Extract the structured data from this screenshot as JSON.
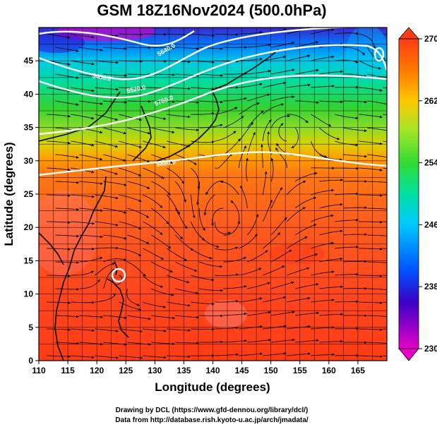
{
  "title": "GSM 18Z16Nov2024 (500.0hPa)",
  "axes": {
    "xlabel": "Longitude (degrees)",
    "ylabel": "Latitude  (degrees)",
    "x_ticks": [
      110,
      115,
      120,
      125,
      130,
      135,
      140,
      145,
      150,
      155,
      160,
      165
    ],
    "y_ticks": [
      0,
      5,
      10,
      15,
      20,
      25,
      30,
      35,
      40,
      45
    ],
    "x_range": [
      110,
      170
    ],
    "y_range": [
      0,
      50
    ]
  },
  "colorbar": {
    "ticks": [
      230,
      238,
      246,
      254,
      262,
      270
    ],
    "range": [
      230,
      270
    ],
    "stops": [
      {
        "value": 230,
        "color": "#e600c8"
      },
      {
        "value": 236,
        "color": "#3c00c8"
      },
      {
        "value": 240,
        "color": "#0050ff"
      },
      {
        "value": 246,
        "color": "#00c8ff"
      },
      {
        "value": 250,
        "color": "#00e0a0"
      },
      {
        "value": 254,
        "color": "#32dc32"
      },
      {
        "value": 258,
        "color": "#a0e628"
      },
      {
        "value": 262,
        "color": "#ffc800"
      },
      {
        "value": 266,
        "color": "#ff7800"
      },
      {
        "value": 270,
        "color": "#ff3c14"
      }
    ]
  },
  "contours": [
    {
      "label": "5400.0"
    },
    {
      "label": "5520.0"
    },
    {
      "label": "5640.0"
    },
    {
      "label": "5760.0"
    },
    {
      "label": "5880.0"
    }
  ],
  "credits": {
    "line1": "Drawing by DCL (https://www.gfd-dennou.org/library/dcl/)",
    "line2": "Data from http://database.rish.kyoto-u.ac.jp/arch/jmadata/"
  }
}
